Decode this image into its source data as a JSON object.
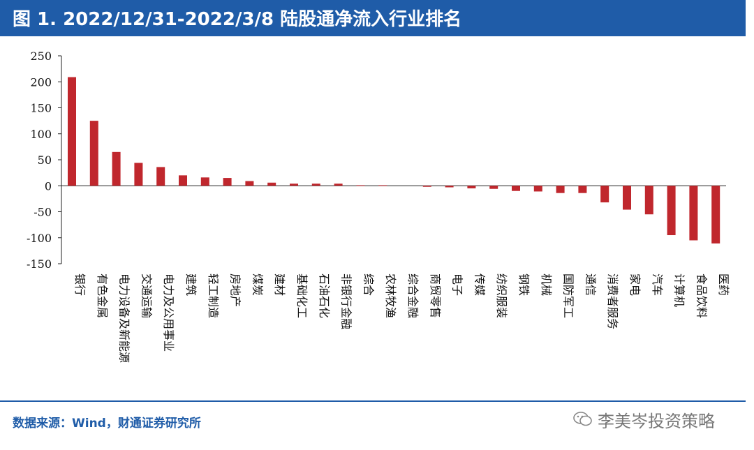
{
  "header": {
    "title": "图 1. 2022/12/31-2022/3/8 陆股通净流入行业排名"
  },
  "footer": {
    "source": "数据来源：Wind，财通证券研究所",
    "watermark": "李美岑投资策略"
  },
  "colors": {
    "bar": "#C0272D",
    "brand": "#1F5CA8"
  },
  "chart_data": {
    "type": "bar",
    "categories": [
      "银行",
      "有色金属",
      "电力设备及新能源",
      "交通运输",
      "电力及公用事业",
      "建筑",
      "轻工制造",
      "房地产",
      "煤炭",
      "建材",
      "基础化工",
      "石油石化",
      "非银行金融",
      "综合",
      "农林牧渔",
      "综合金融",
      "商贸零售",
      "电子",
      "传媒",
      "纺织服装",
      "钢铁",
      "机械",
      "国防军工",
      "通信",
      "消费者服务",
      "家电",
      "汽车",
      "计算机",
      "食品饮料",
      "医药"
    ],
    "values": [
      209,
      125,
      65,
      44,
      36,
      20,
      16,
      15,
      9,
      6,
      4,
      4,
      4,
      1,
      1,
      0,
      -2,
      -3,
      -5,
      -6,
      -10,
      -11,
      -14,
      -14,
      -32,
      -46,
      -55,
      -95,
      -105,
      -111
    ],
    "ylim": [
      -150,
      250
    ],
    "yticks": [
      250,
      200,
      150,
      100,
      50,
      0,
      -50,
      -100,
      -150
    ],
    "ytick_labels": [
      "250",
      "200",
      "150",
      "100",
      "50",
      "0",
      "-50",
      "-100",
      "-150"
    ],
    "grid": false,
    "legend": "none"
  }
}
